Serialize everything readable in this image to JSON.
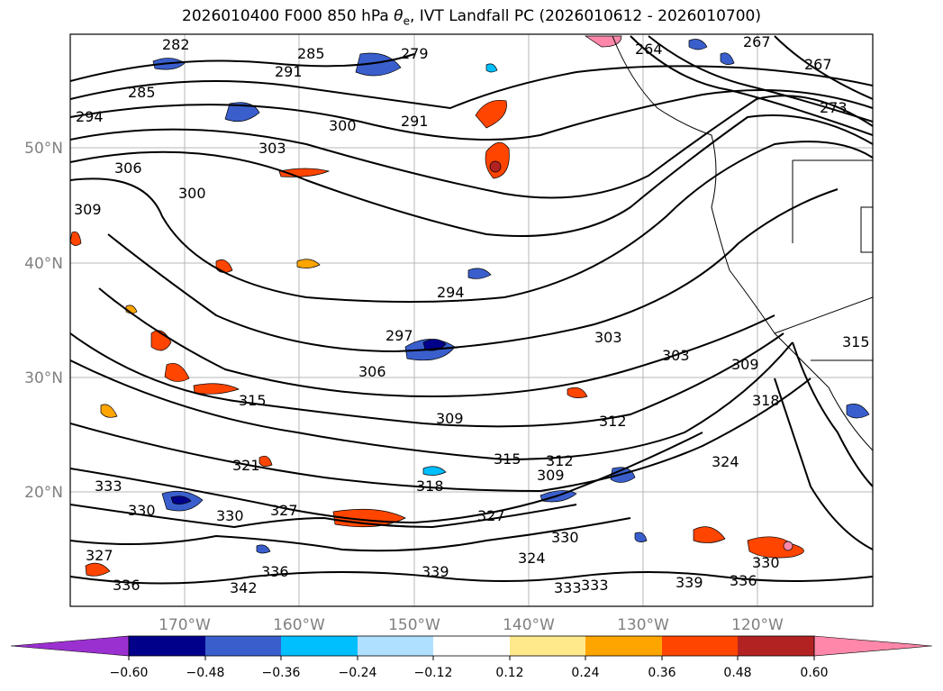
{
  "title": {
    "prefix": "2026010400 F000 850 hPa ",
    "symbol": "θ",
    "subscript": "e",
    "suffix": ", IVT Landfall PC (2026010612 - 2026010700)"
  },
  "map": {
    "lat_labels": [
      "50°N",
      "40°N",
      "30°N",
      "20°N"
    ],
    "lon_labels": [
      "170°W",
      "160°W",
      "150°W",
      "140°W",
      "130°W",
      "120°W"
    ],
    "contour_labels": [
      "282",
      "285",
      "294",
      "291",
      "285",
      "279",
      "264",
      "267",
      "267",
      "273",
      "300",
      "291",
      "303",
      "306",
      "309",
      "300",
      "294",
      "297",
      "303",
      "303",
      "306",
      "309",
      "315",
      "309",
      "312",
      "318",
      "315",
      "312",
      "309",
      "318",
      "321",
      "324",
      "327",
      "330",
      "333",
      "336",
      "339",
      "342",
      "333",
      "330",
      "336",
      "339",
      "324",
      "327",
      "330",
      "336",
      "333",
      "330",
      "327",
      "315"
    ]
  },
  "colorbar": {
    "colors": [
      "#9b30d0",
      "#00008b",
      "#3a5fcd",
      "#00bfff",
      "#b0e0ff",
      "#ffffff",
      "#ffe98a",
      "#ffa500",
      "#ff4500",
      "#b22222",
      "#ff88aa"
    ],
    "tick_labels": [
      "−0.60",
      "−0.48",
      "−0.36",
      "−0.24",
      "−0.12",
      "0.12",
      "0.24",
      "0.36",
      "0.48",
      "0.60"
    ]
  },
  "colors": {
    "axis_label": "#808080",
    "contour": "#000000",
    "grid": "#999999"
  }
}
